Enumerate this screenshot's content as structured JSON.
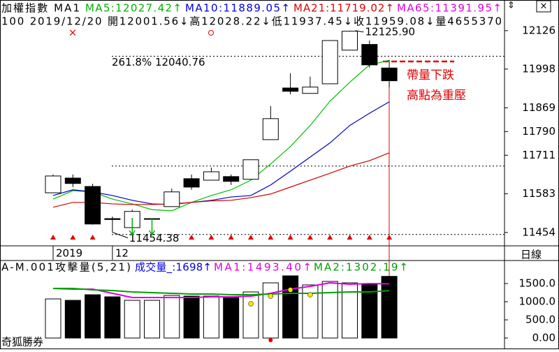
{
  "header": {
    "line1": [
      {
        "text": "加權指數 MA1",
        "color": "#000000"
      },
      {
        "text": "MA5:12027.42↑",
        "color": "#00b000"
      },
      {
        "text": "MA10:11889.05↑",
        "color": "#0000e0"
      },
      {
        "text": "MA21:11719.02↑",
        "color": "#e00000"
      },
      {
        "text": "MA65:11391.95↑",
        "color": "#e000e0"
      }
    ],
    "line2": "100 2019/12/20 開12001.56↓高12028.22↓低11937.45↓收11959.08↓量4655370",
    "period": "日線"
  },
  "footer": "奇狐勝券",
  "chart_data": [
    {
      "type": "candlestick",
      "categories": [
        "2019",
        null,
        null,
        "12",
        null,
        null,
        null,
        null,
        null,
        null,
        null,
        null,
        null,
        null,
        null,
        null,
        null,
        null
      ],
      "open": [
        11586,
        11635,
        11607,
        11500,
        11470,
        11500,
        11540,
        11633,
        11628,
        11640,
        11631,
        11763,
        11935,
        11917,
        11949,
        12061,
        12080,
        12001.56
      ],
      "high": [
        11647,
        11647,
        11616,
        11507,
        11530,
        11500,
        11600,
        11647,
        11670,
        11647,
        11696,
        11875,
        11984,
        11973,
        12093,
        12125.9,
        12093,
        12028.22
      ],
      "low": [
        11586,
        11605,
        11480,
        11454.38,
        11458,
        11460,
        11540,
        11596,
        11628,
        11612,
        11631,
        11763,
        11914,
        11917,
        11949,
        12061,
        12003,
        11937.45
      ],
      "close": [
        11642,
        11617,
        11482,
        11497,
        11524,
        11500,
        11589,
        11605,
        11656,
        11624,
        11696,
        11833,
        11924,
        11938,
        12093,
        12124,
        12012,
        11959.08
      ],
      "series": [
        {
          "color": "#00c000",
          "values": [
            11565,
            11593,
            11589,
            11565,
            11549,
            11530,
            11526,
            11554,
            11577,
            11596,
            11628,
            11682,
            11740,
            11810,
            11891,
            11954,
            12012,
            12027.42
          ]
        },
        {
          "color": "#0000c0",
          "values": [
            11577,
            11596,
            11589,
            11577,
            11561,
            11549,
            11547,
            11554,
            11561,
            11572,
            11577,
            11612,
            11658,
            11705,
            11752,
            11810,
            11851,
            11889.05
          ]
        },
        {
          "color": "#d00000",
          "values": [
            11538,
            11554,
            11554,
            11549,
            11547,
            11547,
            11549,
            11554,
            11559,
            11561,
            11570,
            11582,
            11605,
            11628,
            11651,
            11675,
            11693,
            11719.02
          ]
        }
      ],
      "ylim": [
        11414,
        12228
      ],
      "yticks": [
        12126,
        11998,
        11869,
        11790,
        11711,
        11583,
        11454
      ],
      "guide_lines": [
        12040.76,
        11675,
        11447
      ],
      "fib": {
        "text": "261.8% 12040.76",
        "value": 12040.76
      },
      "high_label": "12125.90",
      "low_label": "11454.38",
      "notes": [
        "帶量下跌",
        "高點為重壓"
      ],
      "up_color": "#ffffff",
      "down_color": "#000000"
    },
    {
      "type": "volume",
      "title": "A-M.001攻擊量(5,21)",
      "legend": [
        {
          "text": "成交量_:1698↑",
          "color": "#0000e0"
        },
        {
          "text": "MA1:1493.40↑",
          "color": "#e000e0"
        },
        {
          "text": "MA2:1302.19↑",
          "color": "#00a000"
        }
      ],
      "values": [
        1077,
        1038,
        1192,
        1135,
        1038,
        1038,
        1173,
        1154,
        1154,
        1135,
        1269,
        1519,
        1712,
        1462,
        1558,
        1519,
        1481,
        1698
      ],
      "series": [
        {
          "color": "#e000e0",
          "values": [
            1365,
            1346,
            1346,
            1231,
            1115,
            1115,
            1115,
            1115,
            1135,
            1135,
            1154,
            1231,
            1346,
            1423,
            1519,
            1481,
            1500,
            1493.4
          ]
        },
        {
          "color": "#00a000",
          "values": [
            1365,
            1365,
            1327,
            1308,
            1269,
            1250,
            1231,
            1212,
            1212,
            1192,
            1192,
            1212,
            1231,
            1231,
            1250,
            1269,
            1269,
            1302.19
          ]
        }
      ],
      "ylim": [
        0,
        2115
      ],
      "yticks": [
        {
          "value": 1500,
          "label": "1500.0"
        },
        {
          "value": 1000,
          "label": "1000.0"
        },
        {
          "value": 500,
          "label": "500.0"
        },
        {
          "value": 0,
          "label": "0.00"
        }
      ]
    }
  ]
}
